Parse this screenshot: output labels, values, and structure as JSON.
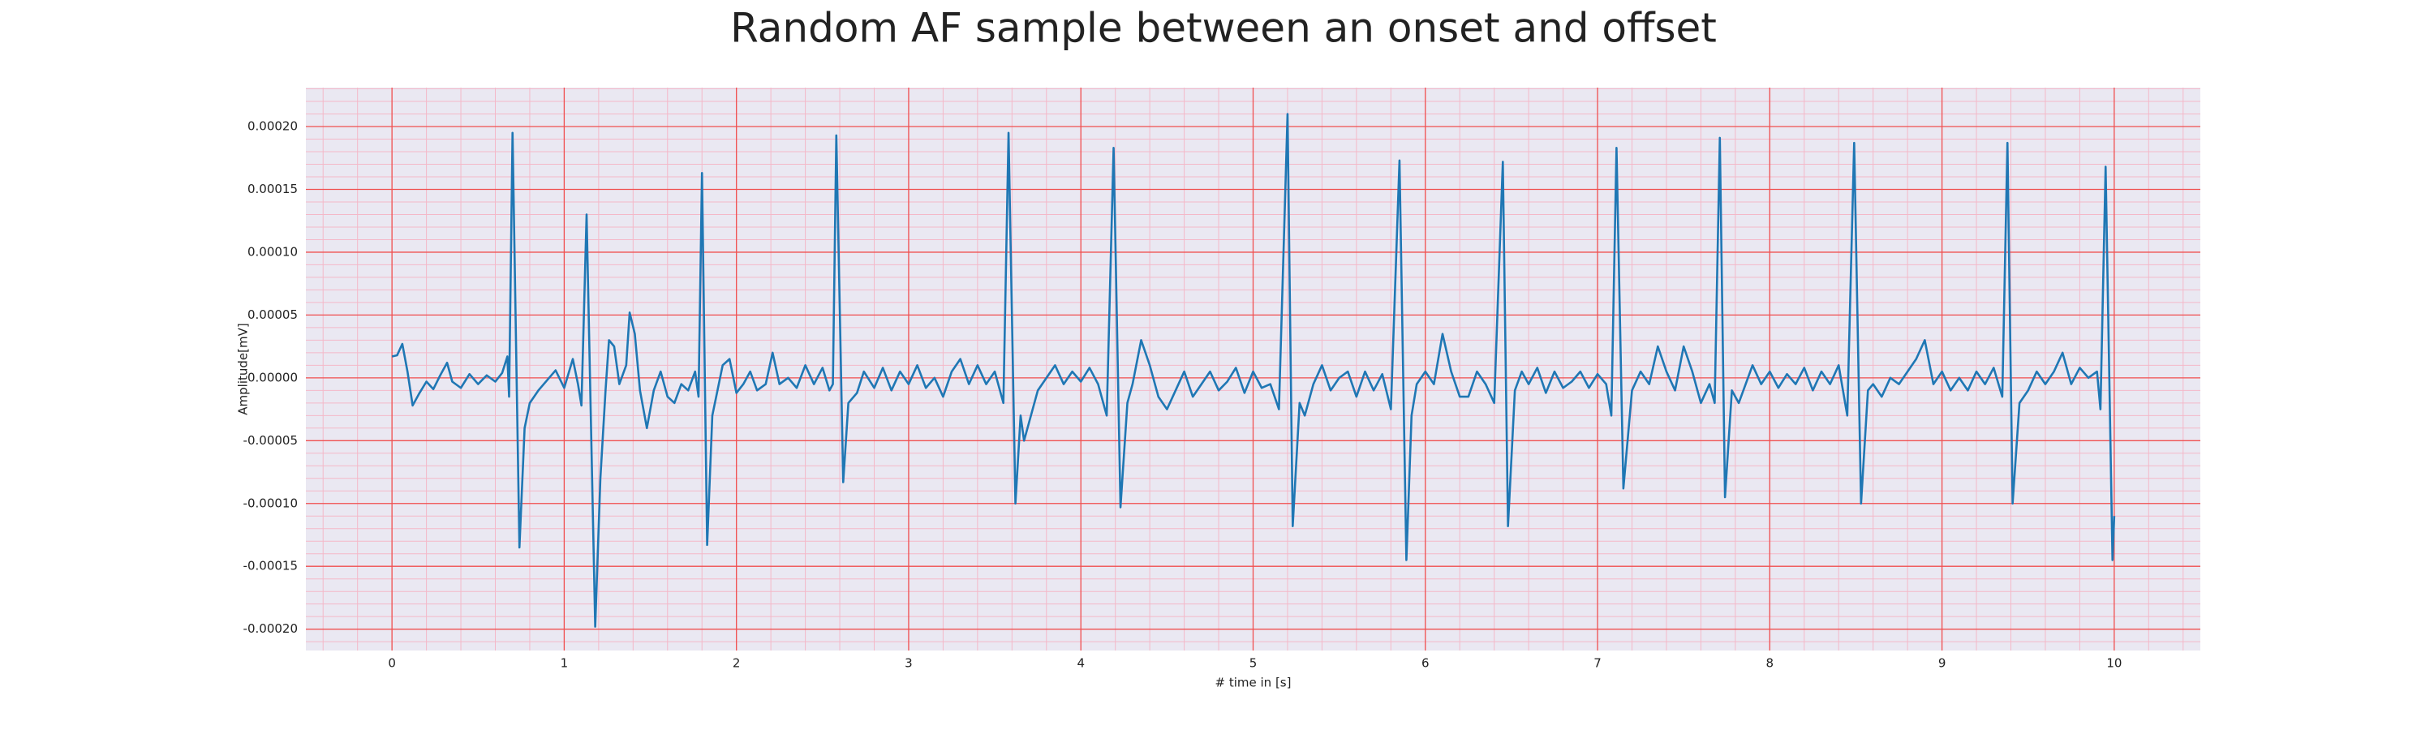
{
  "chart_data": {
    "type": "line",
    "title": "Random AF sample between an onset and offset",
    "x_label": "# time in [s]",
    "y_label": "Amplitude[mV]",
    "x": [
      0,
      0.03,
      0.06,
      0.09,
      0.12,
      0.16,
      0.2,
      0.24,
      0.28,
      0.32,
      0.35,
      0.4,
      0.45,
      0.5,
      0.55,
      0.6,
      0.64,
      0.67,
      0.68,
      0.7,
      0.74,
      0.77,
      0.8,
      0.85,
      0.9,
      0.95,
      1.0,
      1.05,
      1.08,
      1.1,
      1.13,
      1.18,
      1.21,
      1.24,
      1.26,
      1.29,
      1.32,
      1.36,
      1.38,
      1.41,
      1.44,
      1.48,
      1.52,
      1.56,
      1.6,
      1.64,
      1.68,
      1.72,
      1.76,
      1.78,
      1.8,
      1.83,
      1.86,
      1.89,
      1.92,
      1.96,
      2.0,
      2.04,
      2.08,
      2.12,
      2.17,
      2.21,
      2.25,
      2.3,
      2.35,
      2.4,
      2.45,
      2.5,
      2.54,
      2.56,
      2.58,
      2.62,
      2.65,
      2.7,
      2.74,
      2.8,
      2.85,
      2.9,
      2.95,
      3.0,
      3.05,
      3.1,
      3.15,
      3.2,
      3.25,
      3.3,
      3.35,
      3.4,
      3.45,
      3.5,
      3.55,
      3.58,
      3.62,
      3.65,
      3.67,
      3.7,
      3.75,
      3.8,
      3.85,
      3.9,
      3.95,
      4.0,
      4.05,
      4.1,
      4.15,
      4.19,
      4.23,
      4.27,
      4.3,
      4.35,
      4.4,
      4.45,
      4.5,
      4.55,
      4.6,
      4.65,
      4.7,
      4.75,
      4.8,
      4.85,
      4.9,
      4.95,
      5.0,
      5.05,
      5.1,
      5.15,
      5.2,
      5.23,
      5.27,
      5.3,
      5.35,
      5.4,
      5.45,
      5.5,
      5.55,
      5.6,
      5.65,
      5.7,
      5.75,
      5.8,
      5.85,
      5.89,
      5.92,
      5.95,
      6.0,
      6.05,
      6.1,
      6.15,
      6.2,
      6.25,
      6.3,
      6.35,
      6.4,
      6.45,
      6.48,
      6.52,
      6.56,
      6.6,
      6.65,
      6.7,
      6.75,
      6.8,
      6.85,
      6.9,
      6.95,
      7.0,
      7.05,
      7.08,
      7.11,
      7.15,
      7.2,
      7.25,
      7.3,
      7.35,
      7.4,
      7.45,
      7.5,
      7.55,
      7.6,
      7.65,
      7.68,
      7.71,
      7.74,
      7.78,
      7.82,
      7.86,
      7.9,
      7.95,
      8.0,
      8.05,
      8.1,
      8.15,
      8.2,
      8.25,
      8.3,
      8.35,
      8.4,
      8.45,
      8.49,
      8.53,
      8.57,
      8.6,
      8.65,
      8.7,
      8.75,
      8.8,
      8.85,
      8.9,
      8.95,
      9.0,
      9.05,
      9.1,
      9.15,
      9.2,
      9.25,
      9.3,
      9.35,
      9.38,
      9.41,
      9.45,
      9.5,
      9.55,
      9.6,
      9.65,
      9.7,
      9.75,
      9.8,
      9.85,
      9.9,
      9.92,
      9.95,
      9.99,
      10.0
    ],
    "series": [
      {
        "color": "#1f77b4",
        "values": [
          1.7e-05,
          1.8e-05,
          2.7e-05,
          5e-06,
          -2.2e-05,
          -1.2e-05,
          -3e-06,
          -9e-06,
          2e-06,
          1.2e-05,
          -3e-06,
          -8e-06,
          3e-06,
          -5e-06,
          2e-06,
          -3e-06,
          4e-06,
          1.7e-05,
          -1.5e-05,
          0.000195,
          -0.000135,
          -4e-05,
          -2e-05,
          -1e-05,
          -2e-06,
          6e-06,
          -8e-06,
          1.5e-05,
          -5e-06,
          -2.2e-05,
          0.00013,
          -0.000198,
          -8e-05,
          -1e-05,
          3e-05,
          2.5e-05,
          -5e-06,
          1e-05,
          5.2e-05,
          3.5e-05,
          -1e-05,
          -4e-05,
          -1e-05,
          5e-06,
          -1.5e-05,
          -2e-05,
          -5e-06,
          -1e-05,
          5e-06,
          -1.5e-05,
          0.000163,
          -0.000133,
          -3e-05,
          -1e-05,
          1e-05,
          1.5e-05,
          -1.2e-05,
          -5e-06,
          5e-06,
          -1e-05,
          -5e-06,
          2e-05,
          -5e-06,
          0,
          -8e-06,
          1e-05,
          -5e-06,
          8e-06,
          -1e-05,
          -5e-06,
          0.000193,
          -8.3e-05,
          -2e-05,
          -1.2e-05,
          5e-06,
          -8e-06,
          8e-06,
          -1e-05,
          5e-06,
          -5e-06,
          1e-05,
          -8e-06,
          0,
          -1.5e-05,
          5e-06,
          1.5e-05,
          -5e-06,
          1e-05,
          -5e-06,
          5e-06,
          -2e-05,
          0.000195,
          -0.0001,
          -3e-05,
          -5e-05,
          -3.5e-05,
          -1e-05,
          0,
          1e-05,
          -5e-06,
          5e-06,
          -3e-06,
          8e-06,
          -5e-06,
          -3e-05,
          0.000183,
          -0.000103,
          -2e-05,
          -5e-06,
          3e-05,
          1e-05,
          -1.5e-05,
          -2.5e-05,
          -1e-05,
          5e-06,
          -1.5e-05,
          -5e-06,
          5e-06,
          -1e-05,
          -3e-06,
          8e-06,
          -1.2e-05,
          5e-06,
          -8e-06,
          -5e-06,
          -2.5e-05,
          0.00021,
          -0.000118,
          -2e-05,
          -3e-05,
          -5e-06,
          1e-05,
          -1e-05,
          0,
          5e-06,
          -1.5e-05,
          5e-06,
          -1e-05,
          3e-06,
          -2.5e-05,
          0.000173,
          -0.000145,
          -3e-05,
          -5e-06,
          5e-06,
          -5e-06,
          3.5e-05,
          5e-06,
          -1.5e-05,
          -1.5e-05,
          5e-06,
          -5e-06,
          -2e-05,
          0.000172,
          -0.000118,
          -1e-05,
          5e-06,
          -5e-06,
          8e-06,
          -1.2e-05,
          5e-06,
          -8e-06,
          -3e-06,
          5e-06,
          -8e-06,
          3e-06,
          -5e-06,
          -3e-05,
          0.000183,
          -8.8e-05,
          -1e-05,
          5e-06,
          -5e-06,
          2.5e-05,
          5e-06,
          -1e-05,
          2.5e-05,
          5e-06,
          -2e-05,
          -5e-06,
          -2e-05,
          0.000191,
          -9.5e-05,
          -1e-05,
          -2e-05,
          -5e-06,
          1e-05,
          -5e-06,
          5e-06,
          -8e-06,
          3e-06,
          -5e-06,
          8e-06,
          -1e-05,
          5e-06,
          -5e-06,
          1e-05,
          -3e-05,
          0.000187,
          -0.0001,
          -1e-05,
          -5e-06,
          -1.5e-05,
          0,
          -5e-06,
          5e-06,
          1.5e-05,
          3e-05,
          -5e-06,
          5e-06,
          -1e-05,
          0,
          -1e-05,
          5e-06,
          -5e-06,
          8e-06,
          -1.5e-05,
          0.000187,
          -0.0001,
          -2e-05,
          -1e-05,
          5e-06,
          -5e-06,
          5e-06,
          2e-05,
          -5e-06,
          8e-06,
          0,
          5e-06,
          -2.5e-05,
          0.000168,
          -0.000145,
          -0.00011
        ]
      }
    ],
    "xlim": [
      -0.5,
      10.5
    ],
    "ylim": [
      -0.000217,
      0.000231
    ],
    "xticks": [
      0,
      1,
      2,
      3,
      4,
      5,
      6,
      7,
      8,
      9,
      10
    ],
    "yticks": [
      {
        "value": -0.0002,
        "label": "-0.00020"
      },
      {
        "value": -0.00015,
        "label": "-0.00015"
      },
      {
        "value": -0.0001,
        "label": "-0.00010"
      },
      {
        "value": -5e-05,
        "label": "-0.00005"
      },
      {
        "value": 0,
        "label": "0.00000"
      },
      {
        "value": 5e-05,
        "label": "0.00005"
      },
      {
        "value": 0.0001,
        "label": "0.00010"
      },
      {
        "value": 0.00015,
        "label": "0.00015"
      },
      {
        "value": 0.0002,
        "label": "0.00020"
      }
    ],
    "grid": true,
    "minor_grid": true
  }
}
